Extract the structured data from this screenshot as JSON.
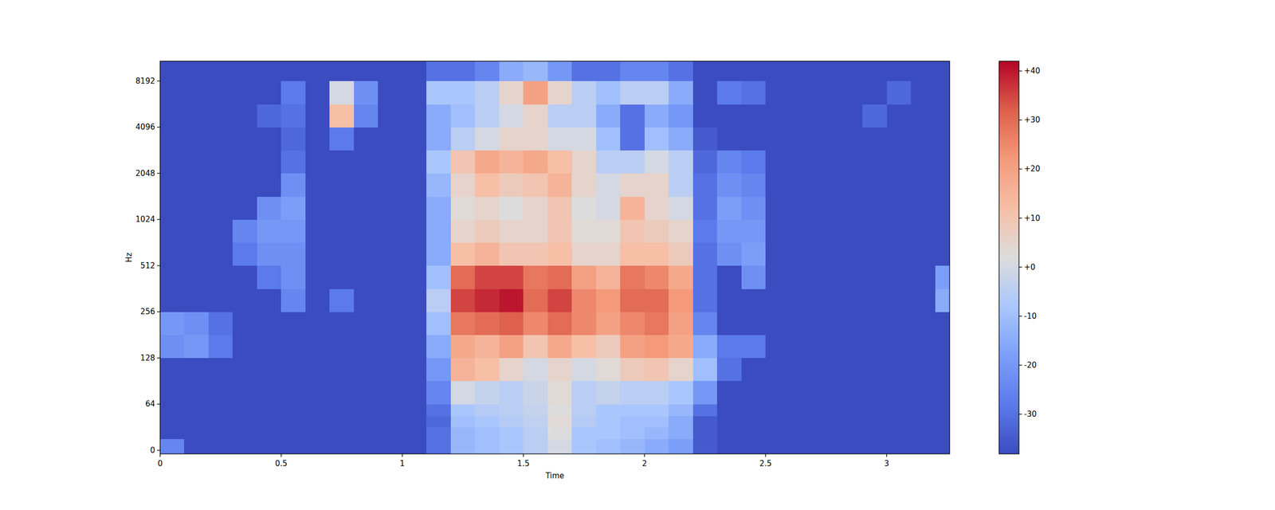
{
  "chart_data": {
    "type": "heatmap",
    "x_label": "Time",
    "y_label": "Hz",
    "log": "y",
    "xlim": [
      0,
      3.26
    ],
    "ylim": [
      -5,
      11025
    ],
    "xticks": [
      0,
      0.5,
      1,
      1.5,
      2,
      2.5,
      3
    ],
    "yticks": [
      0,
      64,
      128,
      256,
      512,
      1024,
      2048,
      4096,
      8192
    ],
    "x_bins": [
      0,
      0.1,
      0.2,
      0.3,
      0.4,
      0.5,
      0.6,
      0.7,
      0.8,
      0.9,
      1.0,
      1.1,
      1.2,
      1.3,
      1.4,
      1.5,
      1.6,
      1.7,
      1.8,
      1.9,
      2.0,
      2.1,
      2.2,
      2.3,
      2.4,
      2.5,
      2.6,
      2.7,
      2.8,
      2.9,
      3.0,
      3.1,
      3.2,
      3.26
    ],
    "y_bins": [
      -5,
      16,
      32,
      48,
      64,
      91,
      128,
      181,
      256,
      362,
      512,
      724,
      1024,
      1448,
      2048,
      2896,
      4096,
      5793,
      8192,
      11025
    ],
    "values": [
      [
        -25,
        -38,
        -38,
        -38,
        -38,
        -38,
        -38,
        -38,
        -38,
        -38,
        -38,
        -30,
        -12,
        -10,
        -8,
        -5,
        0,
        -8,
        -10,
        -12,
        -15,
        -18,
        -35,
        -38,
        -38,
        -38,
        -38,
        -38,
        -38,
        -38,
        -38,
        -38,
        -38
      ],
      [
        -38,
        -38,
        -38,
        -38,
        -38,
        -38,
        -38,
        -38,
        -38,
        -38,
        -38,
        -30,
        -12,
        -10,
        -8,
        -5,
        2,
        -8,
        -8,
        -10,
        -12,
        -15,
        -35,
        -38,
        -38,
        -38,
        -38,
        -38,
        -38,
        -38,
        -38,
        -38,
        -38
      ],
      [
        -38,
        -38,
        -38,
        -38,
        -38,
        -38,
        -38,
        -38,
        -38,
        -38,
        -38,
        -32,
        -10,
        -8,
        -6,
        -4,
        3,
        -6,
        -8,
        -10,
        -10,
        -15,
        -35,
        -38,
        -38,
        -38,
        -38,
        -38,
        -38,
        -38,
        -38,
        -38,
        -38
      ],
      [
        -38,
        -38,
        -38,
        -38,
        -38,
        -38,
        -38,
        -38,
        -38,
        -38,
        -38,
        -30,
        -8,
        -6,
        -5,
        -3,
        2,
        -5,
        -8,
        -8,
        -8,
        -12,
        -30,
        -38,
        -38,
        -38,
        -38,
        -38,
        -38,
        -38,
        -38,
        -38,
        -38
      ],
      [
        -38,
        -38,
        -38,
        -38,
        -38,
        -38,
        -38,
        -38,
        -38,
        -38,
        -38,
        -25,
        0,
        -3,
        -5,
        -2,
        3,
        -5,
        -3,
        -5,
        -5,
        -8,
        -20,
        -38,
        -38,
        -38,
        -38,
        -38,
        -38,
        -38,
        -38,
        -38,
        -38
      ],
      [
        -38,
        -38,
        -38,
        -38,
        -38,
        -38,
        -38,
        -38,
        -38,
        -38,
        -38,
        -20,
        15,
        12,
        5,
        0,
        5,
        0,
        3,
        8,
        10,
        5,
        -10,
        -30,
        -38,
        -38,
        -38,
        -38,
        -38,
        -38,
        -38,
        -38,
        -38
      ],
      [
        -22,
        -20,
        -28,
        -38,
        -38,
        -38,
        -38,
        -38,
        -38,
        -38,
        -38,
        -15,
        18,
        15,
        20,
        10,
        18,
        12,
        8,
        20,
        22,
        18,
        -15,
        -28,
        -28,
        -38,
        -38,
        -38,
        -38,
        -38,
        -38,
        -38,
        -38
      ],
      [
        -20,
        -22,
        -30,
        -38,
        -38,
        -38,
        -38,
        -38,
        -38,
        -38,
        -38,
        -10,
        28,
        30,
        32,
        25,
        30,
        25,
        20,
        25,
        28,
        20,
        -25,
        -38,
        -38,
        -38,
        -38,
        -38,
        -38,
        -38,
        -38,
        -38,
        -38
      ],
      [
        -38,
        -38,
        -38,
        -38,
        -38,
        -25,
        -38,
        -28,
        -38,
        -38,
        -38,
        -5,
        35,
        38,
        40,
        30,
        35,
        25,
        22,
        30,
        30,
        22,
        -30,
        -38,
        -38,
        -38,
        -38,
        -38,
        -38,
        -38,
        -38,
        -38,
        -15
      ],
      [
        -38,
        -38,
        -38,
        -38,
        -28,
        -22,
        -38,
        -38,
        -38,
        -38,
        -38,
        -10,
        30,
        35,
        35,
        28,
        30,
        20,
        15,
        28,
        25,
        18,
        -30,
        -38,
        -22,
        -38,
        -38,
        -38,
        -38,
        -38,
        -38,
        -38,
        -18
      ],
      [
        -38,
        -38,
        -38,
        -28,
        -22,
        -22,
        -38,
        -38,
        -38,
        -38,
        -38,
        -15,
        12,
        15,
        10,
        10,
        12,
        5,
        5,
        12,
        12,
        8,
        -30,
        -22,
        -18,
        -38,
        -38,
        -38,
        -38,
        -38,
        -38,
        -38,
        -38
      ],
      [
        -38,
        -38,
        -38,
        -25,
        -20,
        -20,
        -38,
        -38,
        -38,
        -38,
        -38,
        -15,
        5,
        8,
        5,
        5,
        10,
        3,
        3,
        10,
        8,
        5,
        -28,
        -20,
        -20,
        -38,
        -38,
        -38,
        -38,
        -38,
        -38,
        -38,
        -38
      ],
      [
        -38,
        -38,
        -38,
        -38,
        -22,
        -18,
        -38,
        -38,
        -38,
        -38,
        -38,
        -15,
        3,
        5,
        2,
        5,
        10,
        2,
        0,
        15,
        5,
        0,
        -30,
        -18,
        -22,
        -38,
        -38,
        -38,
        -38,
        -38,
        -38,
        -38,
        -38
      ],
      [
        -38,
        -38,
        -38,
        -38,
        -38,
        -22,
        -38,
        -38,
        -38,
        -38,
        -38,
        -12,
        5,
        12,
        8,
        10,
        15,
        5,
        0,
        5,
        5,
        -5,
        -30,
        -22,
        -25,
        -38,
        -38,
        -38,
        -38,
        -38,
        -38,
        -38,
        -38
      ],
      [
        -38,
        -38,
        -38,
        -38,
        -38,
        -30,
        -38,
        -38,
        -38,
        -38,
        -38,
        -8,
        10,
        18,
        15,
        18,
        12,
        5,
        -5,
        -5,
        0,
        -5,
        -32,
        -25,
        -28,
        -38,
        -38,
        -38,
        -38,
        -38,
        -38,
        -38,
        -38
      ],
      [
        -38,
        -38,
        -38,
        -38,
        -38,
        -32,
        -38,
        -28,
        -38,
        -38,
        -38,
        -15,
        -5,
        0,
        5,
        5,
        0,
        0,
        -10,
        -30,
        -10,
        -15,
        -35,
        -38,
        -38,
        -38,
        -38,
        -38,
        -38,
        -38,
        -38,
        -38,
        -38
      ],
      [
        -38,
        -38,
        -38,
        -38,
        -32,
        -30,
        -38,
        12,
        -25,
        -38,
        -38,
        -15,
        -10,
        -5,
        0,
        5,
        -5,
        -5,
        -15,
        -30,
        -15,
        -20,
        -38,
        -38,
        -38,
        -38,
        -38,
        -38,
        -38,
        -32,
        -38,
        -38,
        -38
      ],
      [
        -38,
        -38,
        -38,
        -38,
        -38,
        -28,
        -38,
        0,
        -22,
        -38,
        -38,
        -8,
        -8,
        -5,
        5,
        20,
        5,
        -5,
        -10,
        -5,
        -5,
        -15,
        -38,
        -28,
        -30,
        -38,
        -38,
        -38,
        -38,
        -38,
        -32,
        -38,
        -38
      ],
      [
        -38,
        -38,
        -38,
        -38,
        -38,
        -38,
        -38,
        -38,
        -38,
        -38,
        -38,
        -30,
        -30,
        -25,
        -15,
        -12,
        -20,
        -30,
        -30,
        -25,
        -25,
        -30,
        -38,
        -38,
        -38,
        -38,
        -38,
        -38,
        -38,
        -38,
        -38,
        -38,
        -38
      ]
    ],
    "colorbar": {
      "range": [
        -38.1,
        42
      ],
      "ticks": [
        -30,
        -20,
        -10,
        {
          "value": 0,
          "label": "+0"
        },
        {
          "value": 10,
          "label": "+10"
        },
        {
          "value": 20,
          "label": "+20"
        },
        {
          "value": 30,
          "label": "+30"
        },
        {
          "value": 40,
          "label": "+40"
        }
      ]
    }
  }
}
